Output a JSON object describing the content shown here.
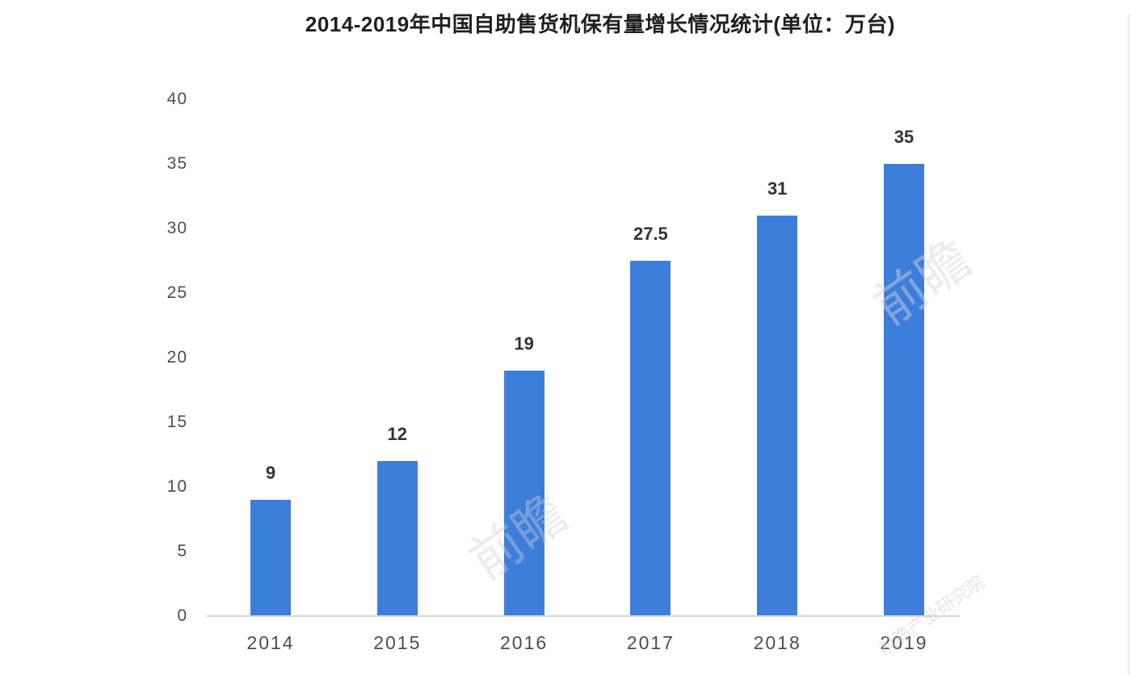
{
  "title": "2014-2019年中国自助售货机保有量增长情况统计(单位：万台)",
  "watermarks": {
    "wm1": "前瞻",
    "wm2": "前瞻",
    "wm3": "前瞻产业研究院"
  },
  "colors": {
    "bar": "#3e7edb",
    "axis_line": "#d6d6d6",
    "tick_text": "#4d4d4d",
    "value_text": "#333333",
    "title_text": "#1f1f1f"
  },
  "chart_data": {
    "type": "bar",
    "title": "2014-2019年中国自助售货机保有量增长情况统计(单位：万台)",
    "categories": [
      "2014",
      "2015",
      "2016",
      "2017",
      "2018",
      "2019"
    ],
    "values": [
      9,
      12,
      19,
      27.5,
      31,
      35
    ],
    "value_labels": [
      "9",
      "12",
      "19",
      "27.5",
      "31",
      "35"
    ],
    "xlabel": "",
    "ylabel": "",
    "ylim": [
      0,
      40
    ],
    "yticks": [
      0,
      5,
      10,
      15,
      20,
      25,
      30,
      35,
      40
    ],
    "grid": false,
    "legend": false,
    "bar_color": "#3e7edb",
    "unit": "万台"
  }
}
